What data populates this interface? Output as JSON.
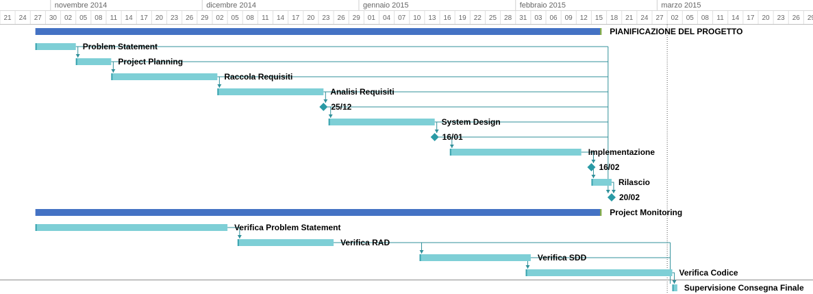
{
  "chart_data": {
    "type": "gantt",
    "timescale": {
      "months": [
        {
          "label": "novembre 2014",
          "start_day": 10
        },
        {
          "label": "dicembre 2014",
          "start_day": 40
        },
        {
          "label": "gennaio 2015",
          "start_day": 71
        },
        {
          "label": "febbraio 2015",
          "start_day": 102
        },
        {
          "label": "marzo 2015",
          "start_day": 130
        }
      ],
      "day_ticks": [
        "21",
        "24",
        "27",
        "30",
        "02",
        "05",
        "08",
        "11",
        "14",
        "17",
        "20",
        "23",
        "26",
        "29",
        "02",
        "05",
        "08",
        "11",
        "14",
        "17",
        "20",
        "23",
        "26",
        "29",
        "01",
        "04",
        "07",
        "10",
        "13",
        "16",
        "19",
        "22",
        "25",
        "28",
        "31",
        "03",
        "06",
        "09",
        "12",
        "15",
        "18",
        "21",
        "24",
        "27",
        "02",
        "05",
        "08",
        "11",
        "14",
        "17",
        "20",
        "23",
        "26",
        "29"
      ]
    },
    "status_date_day": 132,
    "rows": [
      {
        "name": "PIANIFICAZIONE DEL PROGETTO",
        "kind": "summary",
        "start_day": 7,
        "end_day": 119
      },
      {
        "name": "Problem Statement",
        "kind": "task",
        "start_day": 7,
        "end_day": 15
      },
      {
        "name": "Project Planning",
        "kind": "task",
        "start_day": 15,
        "end_day": 22
      },
      {
        "name": "Raccola Requisiti",
        "kind": "task",
        "start_day": 22,
        "end_day": 43
      },
      {
        "name": "Analisi Requisiti",
        "kind": "task",
        "start_day": 43,
        "end_day": 64
      },
      {
        "name": "25/12",
        "kind": "milestone",
        "day": 64
      },
      {
        "name": "System Design",
        "kind": "task",
        "start_day": 65,
        "end_day": 86
      },
      {
        "name": "16/01",
        "kind": "milestone",
        "day": 86
      },
      {
        "name": "Implementazione",
        "kind": "task",
        "start_day": 89,
        "end_day": 115
      },
      {
        "name": "16/02",
        "kind": "milestone",
        "day": 117
      },
      {
        "name": "Rilascio",
        "kind": "task",
        "start_day": 117,
        "end_day": 121
      },
      {
        "name": "20/02",
        "kind": "milestone",
        "day": 121
      },
      {
        "name": "Project Monitoring",
        "kind": "summary",
        "start_day": 7,
        "end_day": 119
      },
      {
        "name": "Verifica Problem Statement",
        "kind": "task",
        "start_day": 7,
        "end_day": 45
      },
      {
        "name": "Verifica RAD",
        "kind": "task",
        "start_day": 47,
        "end_day": 66
      },
      {
        "name": "Verifica SDD",
        "kind": "task",
        "start_day": 83,
        "end_day": 105
      },
      {
        "name": "Verifica Codice",
        "kind": "task",
        "start_day": 104,
        "end_day": 133
      },
      {
        "name": "Supervisione Consegna Finale",
        "kind": "task",
        "start_day": 133,
        "end_day": 134
      }
    ],
    "colors": {
      "summary": "#4472C4",
      "task": "#7ECFD6",
      "task_edge": "#3AA3AE",
      "milestone": "#2A9AA5",
      "link": "#2F8F99",
      "grid": "#E4E4E4"
    }
  }
}
